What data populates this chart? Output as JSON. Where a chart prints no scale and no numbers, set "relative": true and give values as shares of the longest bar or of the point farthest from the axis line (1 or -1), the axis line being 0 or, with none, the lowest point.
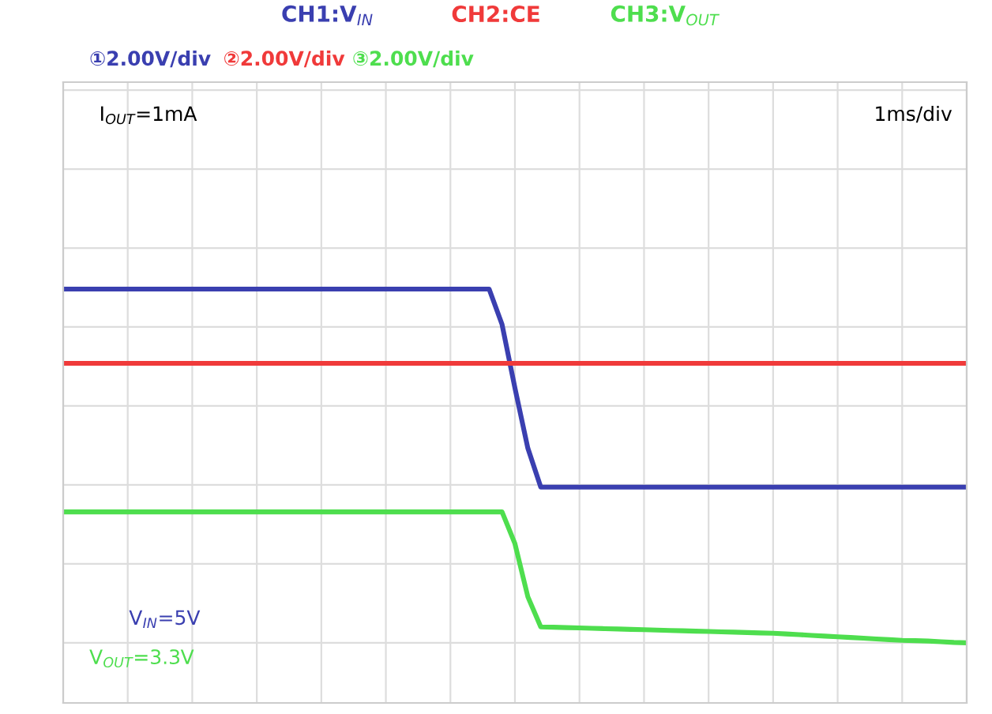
{
  "chart_data": {
    "type": "line",
    "relative": true,
    "grid": true,
    "legend": "top",
    "marker": "none",
    "line_style": "solid",
    "categories": [
      null,
      null,
      null,
      null,
      null,
      null,
      null,
      null,
      null,
      null,
      null,
      null,
      null,
      null,
      null,
      null,
      null,
      null,
      null,
      null,
      null,
      null,
      null,
      null,
      null,
      null,
      null,
      null,
      null,
      null,
      null,
      null,
      null,
      null,
      null,
      null,
      null,
      null,
      null,
      null,
      null,
      null,
      null,
      null,
      null,
      null,
      null,
      null,
      null,
      null,
      null,
      null,
      null,
      null,
      null,
      null,
      null,
      null,
      null,
      null,
      null,
      null,
      null,
      null,
      null,
      null,
      null,
      null,
      null,
      null,
      null
    ],
    "series": [
      {
        "name": "CH1:V$_{IN}$",
        "color": "#3a3fb0",
        "values": [
          1,
          1,
          1,
          1,
          1,
          1,
          1,
          1,
          1,
          1,
          1,
          1,
          1,
          1,
          1,
          1,
          1,
          1,
          1,
          1,
          1,
          1,
          1,
          1,
          1,
          1,
          1,
          1,
          1,
          1,
          1,
          1,
          1,
          1,
          0.9,
          0.72,
          0.55,
          0.44,
          0.44,
          0.44,
          0.44,
          0.44,
          0.44,
          0.44,
          0.44,
          0.44,
          0.44,
          0.44,
          0.44,
          0.44,
          0.44,
          0.44,
          0.44,
          0.44,
          0.44,
          0.44,
          0.44,
          0.44,
          0.44,
          0.44,
          0.44,
          0.44,
          0.44,
          0.44,
          0.44,
          0.44,
          0.44,
          0.44,
          0.44,
          0.44,
          0.44
        ]
      },
      {
        "name": "CH2:CE",
        "color": "#f03a3a",
        "values": [
          0.79,
          0.79,
          0.79,
          0.79,
          0.79,
          0.79,
          0.79,
          0.79,
          0.79,
          0.79,
          0.79,
          0.79,
          0.79,
          0.79,
          0.79,
          0.79,
          0.79,
          0.79,
          0.79,
          0.79,
          0.79,
          0.79,
          0.79,
          0.79,
          0.79,
          0.79,
          0.79,
          0.79,
          0.79,
          0.79,
          0.79,
          0.79,
          0.79,
          0.79,
          0.79,
          0.79,
          0.79,
          0.79,
          0.79,
          0.79,
          0.79,
          0.79,
          0.79,
          0.79,
          0.79,
          0.79,
          0.79,
          0.79,
          0.79,
          0.79,
          0.79,
          0.79,
          0.79,
          0.79,
          0.79,
          0.79,
          0.79,
          0.79,
          0.79,
          0.79,
          0.79,
          0.79,
          0.79,
          0.79,
          0.79,
          0.79,
          0.79,
          0.79,
          0.79,
          0.79,
          0.79
        ]
      },
      {
        "name": "CH3:V$_{OUT}$",
        "color": "#4ede4e",
        "values": [
          0.37,
          0.37,
          0.37,
          0.37,
          0.37,
          0.37,
          0.37,
          0.37,
          0.37,
          0.37,
          0.37,
          0.37,
          0.37,
          0.37,
          0.37,
          0.37,
          0.37,
          0.37,
          0.37,
          0.37,
          0.37,
          0.37,
          0.37,
          0.37,
          0.37,
          0.37,
          0.37,
          0.37,
          0.37,
          0.37,
          0.37,
          0.37,
          0.37,
          0.37,
          0.37,
          0.28,
          0.13,
          0.045,
          0.044,
          0.043,
          0.042,
          0.041,
          0.04,
          0.039,
          0.038,
          0.037,
          0.036,
          0.035,
          0.034,
          0.033,
          0.032,
          0.031,
          0.03,
          0.029,
          0.028,
          0.027,
          0.025,
          0.023,
          0.021,
          0.019,
          0.017,
          0.015,
          0.013,
          0.011,
          0.009,
          0.007,
          0.006,
          0.005,
          0.003,
          0.001,
          0
        ]
      }
    ],
    "annotations": [
      "①2.00V/div",
      "②2.00V/div",
      "③2.00V/div",
      "I$_{OUT}$=1mA",
      "1ms/div",
      "V$_{IN}$=5V",
      "V$_{OUT}$=3.3V"
    ]
  }
}
